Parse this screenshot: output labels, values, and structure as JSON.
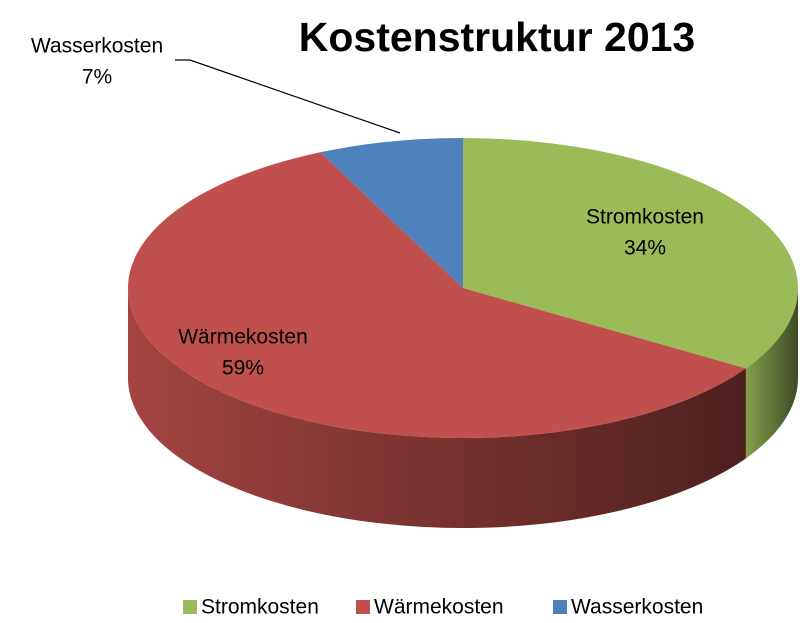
{
  "chart_data": {
    "type": "pie",
    "title": "Kostenstruktur 2013",
    "categories": [
      "Stromkosten",
      "Wärmekosten",
      "Wasserkosten"
    ],
    "values": [
      34,
      59,
      7
    ],
    "value_labels": [
      "34%",
      "59%",
      "7%"
    ],
    "colors": [
      "#9bbb59",
      "#c0504d",
      "#4f81bd"
    ],
    "legend": "bottom"
  }
}
